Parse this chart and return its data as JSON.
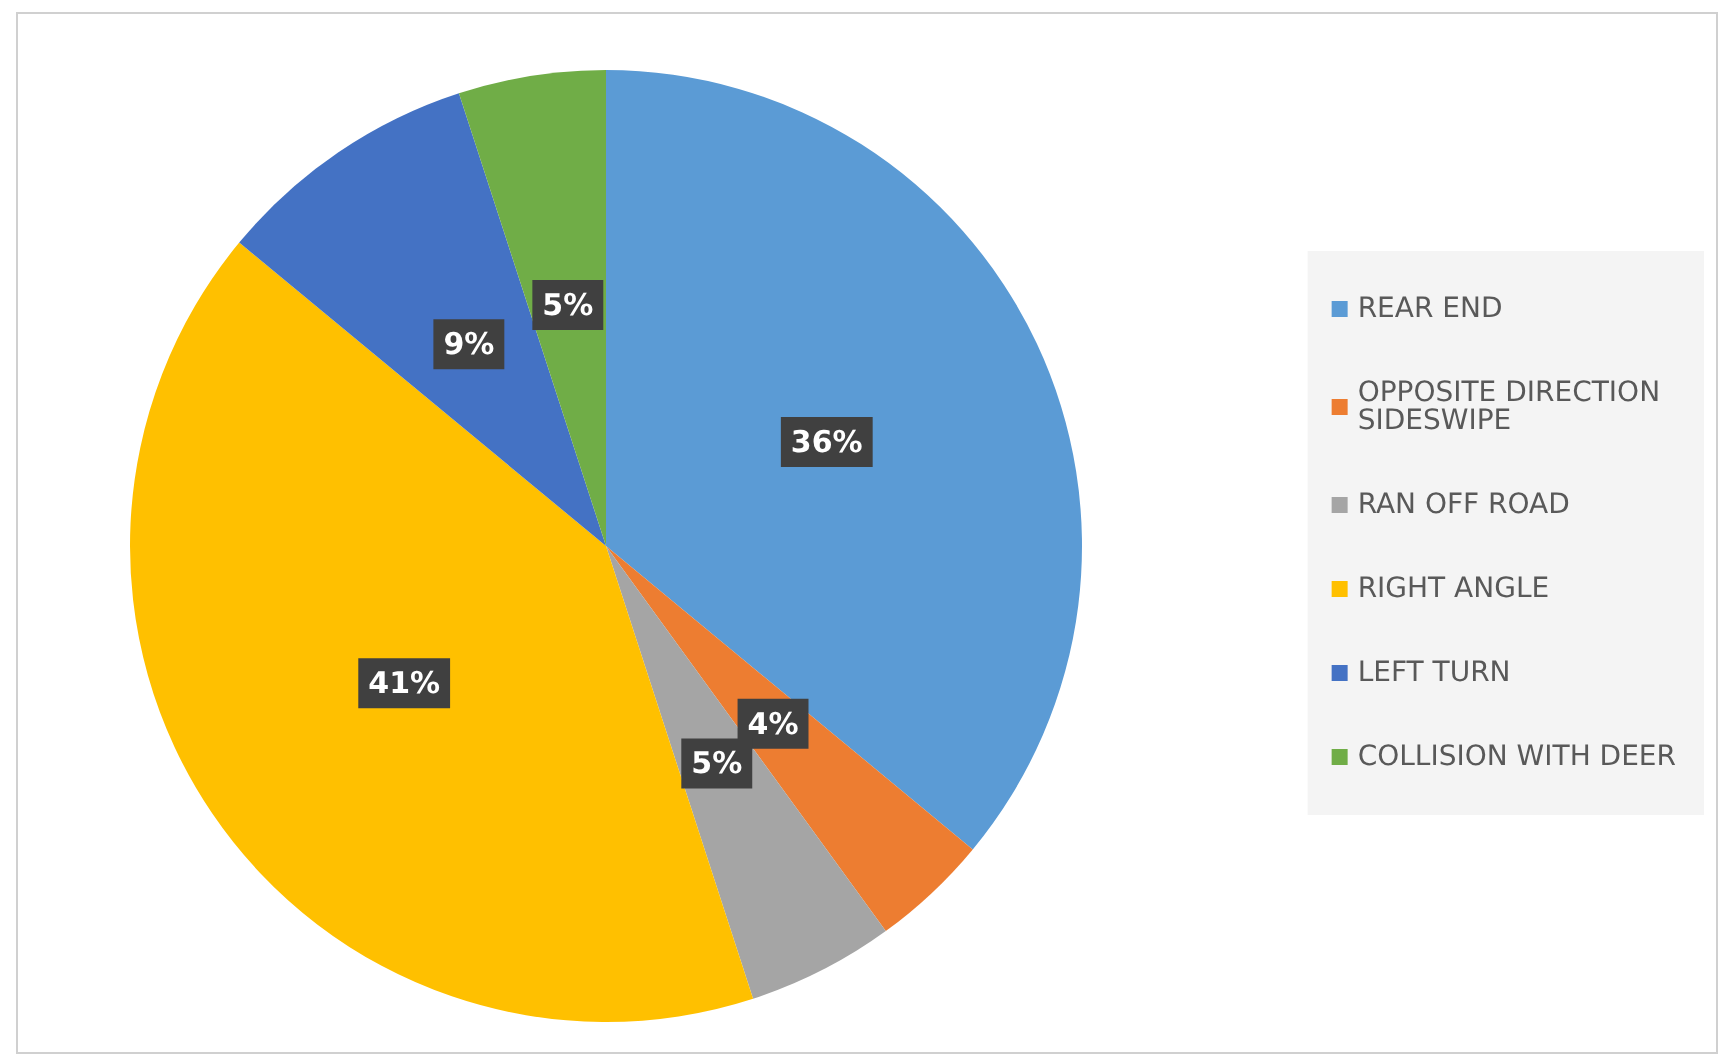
{
  "chart_data": {
    "type": "pie",
    "categories": [
      "REAR END",
      "OPPOSITE DIRECTION SIDESWIPE",
      "RAN OFF ROAD",
      "RIGHT ANGLE",
      "LEFT TURN",
      "COLLISION WITH DEER"
    ],
    "values": [
      36,
      4,
      5,
      41,
      9,
      5
    ],
    "colors": [
      "#5b9bd5",
      "#ed7d31",
      "#a5a5a5",
      "#ffc000",
      "#4472c4",
      "#70ad47"
    ],
    "value_labels": [
      "36%",
      "4%",
      "5%",
      "41%",
      "9%",
      "5%"
    ],
    "legend": "right"
  }
}
